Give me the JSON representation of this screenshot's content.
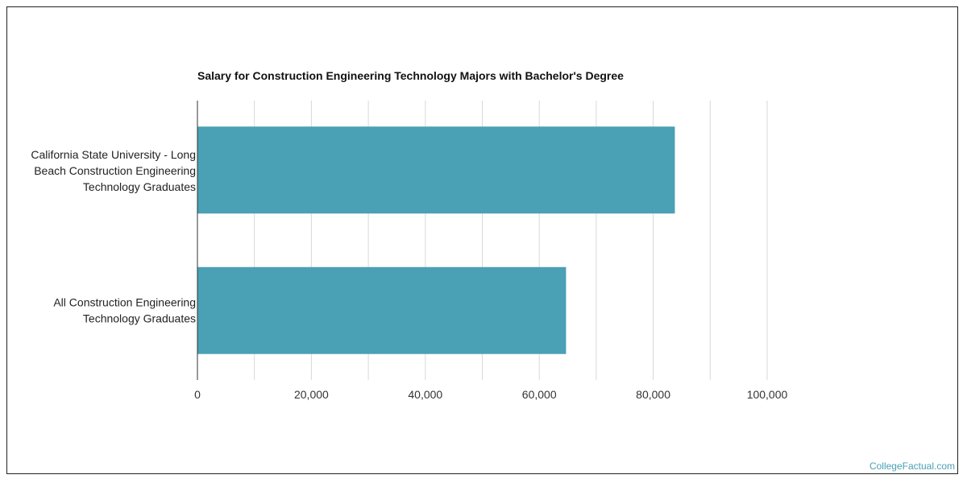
{
  "chart_data": {
    "type": "bar",
    "orientation": "horizontal",
    "title": "Salary for Construction Engineering Technology Majors with Bachelor's Degree",
    "categories": [
      [
        "California State University - Long",
        "Beach Construction Engineering",
        "Technology Graduates"
      ],
      [
        "All Construction Engineering",
        "Technology Graduates"
      ]
    ],
    "values": [
      83800,
      64700
    ],
    "xlim": [
      0,
      110000
    ],
    "ticks": [
      0,
      20000,
      40000,
      60000,
      80000,
      100000
    ],
    "tick_labels": [
      "0",
      "20,000",
      "40,000",
      "60,000",
      "80,000",
      "100,000"
    ],
    "grid": true,
    "colors": {
      "bar": "#4aa0b4",
      "grid": "#d9d9d9",
      "axis": "#333333"
    }
  },
  "watermark": "CollegeFactual.com"
}
